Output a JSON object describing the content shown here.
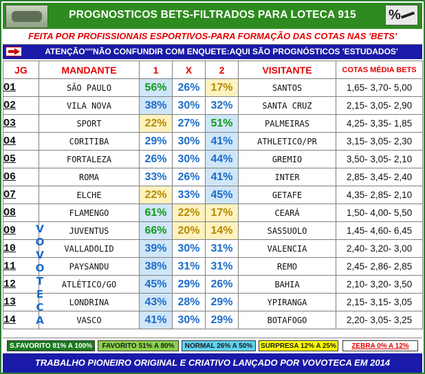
{
  "header": {
    "title": "PROGNOSTICOS BETS-FILTRADOS PARA LOTECA 915",
    "badge": "%"
  },
  "subtitle": "FEITA POR PROFISSIONAIS ESPORTIVOS-PARA FORMAÇÃO DAS COTAS NAS 'BETS'",
  "attention": "ATENÇÃO''''NÃO CONFUNDIR COM ENQUETE:AQUI SÃO PROGNÓSTICOS 'ESTUDADOS'",
  "columns": {
    "jg": "JG",
    "home": "MANDANTE",
    "p1": "1",
    "px": "X",
    "p2": "2",
    "away": "VISITANTE",
    "odds": "COTAS MÉDIA BETS"
  },
  "rows": [
    {
      "jg": "O1",
      "home": "SÃO PAULO",
      "p1": "56%",
      "px": "26%",
      "p2": "17%",
      "away": "SANTOS",
      "odds": "1,65- 3,70- 5,00",
      "fav": "p1",
      "fav_style": "sf",
      "sur": "p2"
    },
    {
      "jg": "O2",
      "home": "VILA NOVA",
      "p1": "38%",
      "px": "30%",
      "p2": "32%",
      "away": "SANTA CRUZ",
      "odds": "2,15- 3,05- 2,90",
      "fav": "p1",
      "fav_style": "n",
      "sur": ""
    },
    {
      "jg": "O3",
      "home": "SPORT",
      "p1": "22%",
      "px": "27%",
      "p2": "51%",
      "away": "PALMEIRAS",
      "odds": "4,25- 3,35- 1,85",
      "fav": "p2",
      "fav_style": "sf",
      "sur": "p1"
    },
    {
      "jg": "O4",
      "home": "CORITIBA",
      "p1": "29%",
      "px": "30%",
      "p2": "41%",
      "away": "ATHLETICO/PR",
      "odds": "3,15- 3,05- 2,30",
      "fav": "p2",
      "fav_style": "n",
      "sur": ""
    },
    {
      "jg": "O5",
      "home": "FORTALEZA",
      "p1": "26%",
      "px": "30%",
      "p2": "44%",
      "away": "GREMIO",
      "odds": "3,50- 3,05- 2,10",
      "fav": "p2",
      "fav_style": "n",
      "sur": ""
    },
    {
      "jg": "O6",
      "home": "ROMA",
      "p1": "33%",
      "px": "26%",
      "p2": "41%",
      "away": "INTER",
      "odds": "2,85- 3,45- 2,40",
      "fav": "p2",
      "fav_style": "n",
      "sur": ""
    },
    {
      "jg": "O7",
      "home": "ELCHE",
      "p1": "22%",
      "px": "33%",
      "p2": "45%",
      "away": "GETAFE",
      "odds": "4,35- 2,85- 2,10",
      "fav": "p2",
      "fav_style": "n",
      "sur": "p1"
    },
    {
      "jg": "O8",
      "home": "FLAMENGO",
      "p1": "61%",
      "px": "22%",
      "p2": "17%",
      "away": "CEARÁ",
      "odds": "1,50- 4,00- 5,50",
      "fav": "p1",
      "fav_style": "sf",
      "sur": "px,p2"
    },
    {
      "jg": "O9",
      "home": "JUVENTUS",
      "p1": "66%",
      "px": "20%",
      "p2": "14%",
      "away": "SASSUOLO",
      "odds": "1,45- 4,60- 6,45",
      "fav": "p1",
      "fav_style": "sf",
      "sur": "px,p2"
    },
    {
      "jg": "10",
      "home": "VALLADOLID",
      "p1": "39%",
      "px": "30%",
      "p2": "31%",
      "away": "VALENCIA",
      "odds": "2,40- 3,20- 3,00",
      "fav": "p1",
      "fav_style": "n",
      "sur": ""
    },
    {
      "jg": "11",
      "home": "PAYSANDU",
      "p1": "38%",
      "px": "31%",
      "p2": "31%",
      "away": "REMO",
      "odds": "2,45- 2,86- 2,85",
      "fav": "p1",
      "fav_style": "n",
      "sur": ""
    },
    {
      "jg": "12",
      "home": "ATLÉTICO/GO",
      "p1": "45%",
      "px": "29%",
      "p2": "26%",
      "away": "BAHIA",
      "odds": "2,10- 3,20- 3,50",
      "fav": "p1",
      "fav_style": "n",
      "sur": ""
    },
    {
      "jg": "13",
      "home": "LONDRINA",
      "p1": "43%",
      "px": "28%",
      "p2": "29%",
      "away": "YPIRANGA",
      "odds": "2,15- 3,15- 3,05",
      "fav": "p1",
      "fav_style": "n",
      "sur": ""
    },
    {
      "jg": "14",
      "home": "VASCO",
      "p1": "41%",
      "px": "30%",
      "p2": "29%",
      "away": "BOTAFOGO",
      "odds": "2,20- 3,05- 3,25",
      "fav": "p1",
      "fav_style": "n",
      "sur": ""
    }
  ],
  "watermark_letters": [
    "V",
    "O",
    "V",
    "O",
    "T",
    "E",
    "C",
    "A"
  ],
  "legend": {
    "l1": "S.FAVORITO 81% A 100%",
    "l2": "FAVORITO 51% A 80%",
    "l3": "NORMAL 26% A 50%",
    "l4": "SURPRESA 12% A 25%",
    "l5": "ZEBRA    0% A 12%"
  },
  "footer": "TRABALHO PIONEIRO ORIGINAL E CRIATIVO LANÇADO POR VOVOTECA EM 2014",
  "colors": {
    "header_green": "#2e8b1f",
    "banner_blue": "#1a1aa8",
    "header_red": "#e30000",
    "pct_blue": "#1c6cc8",
    "pct_green": "#149a1a",
    "fav_bg": "#cfe6f8",
    "surprise_bg": "#fff2bf"
  }
}
